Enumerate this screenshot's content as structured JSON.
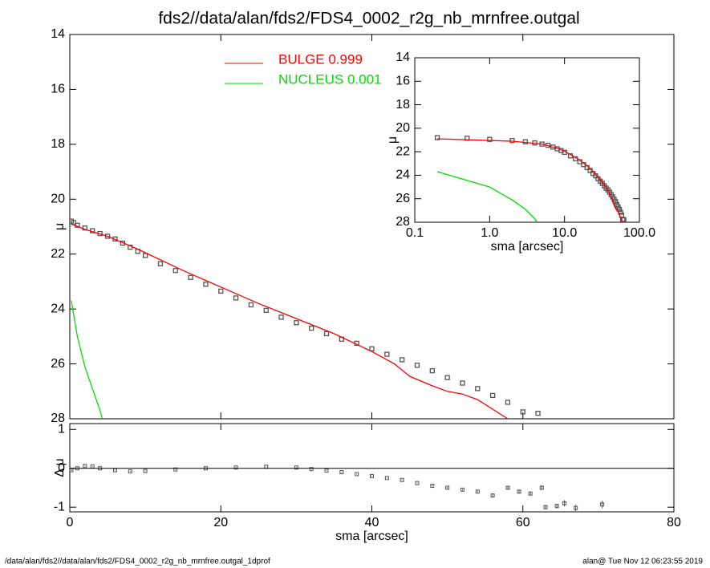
{
  "chart_data": [
    {
      "type": "profile",
      "title": "fds2//data/alan/fds2/FDS4_0002_r2g_nb_mrnfree.outgal",
      "ylabel": "μ",
      "xlim": [
        0,
        80
      ],
      "xticks": [
        0,
        20,
        40,
        60,
        80
      ],
      "ylim": [
        14,
        28
      ],
      "y_inverted": true,
      "yticks": [
        14,
        16,
        18,
        20,
        22,
        24,
        26,
        28
      ],
      "series": [
        {
          "marker": "square",
          "color": "#555555",
          "x": [
            0.2,
            0.5,
            1,
            2,
            3,
            4,
            5,
            6,
            7,
            8,
            9,
            10,
            12,
            14,
            16,
            18,
            20,
            22,
            24,
            26,
            28,
            30,
            32,
            34,
            36,
            38,
            40,
            42,
            44,
            46,
            48,
            50,
            52,
            54,
            56,
            58,
            60,
            62
          ],
          "values": [
            20.8,
            20.85,
            20.95,
            21.05,
            21.15,
            21.25,
            21.35,
            21.45,
            21.6,
            21.75,
            21.9,
            22.05,
            22.35,
            22.6,
            22.85,
            23.1,
            23.35,
            23.6,
            23.85,
            24.05,
            24.3,
            24.5,
            24.7,
            24.9,
            25.1,
            25.25,
            25.45,
            25.65,
            25.85,
            26.05,
            26.25,
            26.5,
            26.7,
            26.9,
            27.15,
            27.4,
            27.75,
            27.8
          ]
        },
        {
          "name": "BULGE  0.999",
          "color": "#ff0000",
          "x": [
            0.2,
            2,
            5,
            8,
            10,
            15,
            20,
            25,
            30,
            35,
            40,
            42,
            43,
            45,
            48,
            50,
            52,
            54,
            56,
            58
          ],
          "values": [
            20.9,
            21.1,
            21.35,
            21.7,
            21.95,
            22.6,
            23.2,
            23.8,
            24.35,
            24.9,
            25.55,
            25.85,
            26.0,
            26.45,
            26.8,
            27.0,
            27.1,
            27.3,
            27.65,
            28.0
          ]
        },
        {
          "name": "NUCLEUS  0.001",
          "color": "#00dd00",
          "x": [
            0.2,
            1,
            2,
            3,
            4,
            4.3
          ],
          "values": [
            23.7,
            25.0,
            26.1,
            26.9,
            27.7,
            28.0
          ]
        }
      ]
    },
    {
      "type": "errorbar",
      "ylabel": "Δ μ",
      "xlabel": "sma [arcsec]",
      "xlim": [
        0,
        80
      ],
      "xticks": [
        0,
        20,
        40,
        60,
        80
      ],
      "ylim": [
        -1.12,
        1.15
      ],
      "yticks": [
        -1,
        0,
        1
      ],
      "hline": 0,
      "x": [
        0.2,
        1,
        2,
        3,
        4,
        6,
        8,
        10,
        14,
        18,
        22,
        26,
        30,
        32,
        34,
        36,
        38,
        40,
        42,
        44,
        46,
        48,
        50,
        52,
        54,
        56,
        58,
        59.5,
        61,
        62.5,
        63,
        64.5,
        65.5,
        67,
        70.5
      ],
      "values": [
        -0.05,
        0.0,
        0.06,
        0.05,
        0.0,
        -0.05,
        -0.08,
        -0.07,
        -0.03,
        0.0,
        0.02,
        0.04,
        0.02,
        -0.02,
        -0.06,
        -0.1,
        -0.15,
        -0.2,
        -0.25,
        -0.3,
        -0.38,
        -0.45,
        -0.5,
        -0.55,
        -0.6,
        -0.7,
        -0.5,
        -0.6,
        -0.65,
        -0.5,
        -1.0,
        -0.97,
        -0.9,
        -1.02,
        -0.93
      ],
      "errors": [
        0.02,
        0.01,
        0.01,
        0.01,
        0.01,
        0.01,
        0.01,
        0.01,
        0.01,
        0.01,
        0.01,
        0.01,
        0.01,
        0.01,
        0.01,
        0.01,
        0.01,
        0.01,
        0.01,
        0.01,
        0.01,
        0.02,
        0.02,
        0.02,
        0.02,
        0.03,
        0.04,
        0.05,
        0.05,
        0.06,
        0.06,
        0.06,
        0.08,
        0.08,
        0.1
      ]
    },
    {
      "type": "inset",
      "ylabel": "μ",
      "xlabel": "sma [arcsec]",
      "xlog": true,
      "xlim": [
        0.1,
        100
      ],
      "xticks": [
        0.1,
        {
          "value": 1,
          "label": "1.0"
        },
        {
          "value": 10,
          "label": "10.0"
        },
        {
          "value": 100,
          "label": "100.0"
        }
      ],
      "ylim": [
        14,
        28
      ],
      "y_inverted": true,
      "yticks": [
        14,
        16,
        18,
        20,
        22,
        24,
        26,
        28
      ]
    }
  ],
  "footer": {
    "left": "/data/alan/fds2//data/alan/fds2/FDS4_0002_r2g_nb_mrnfree.outgal_1dprof",
    "right": "alan@  Tue Nov 12 06:23:55 2019"
  }
}
